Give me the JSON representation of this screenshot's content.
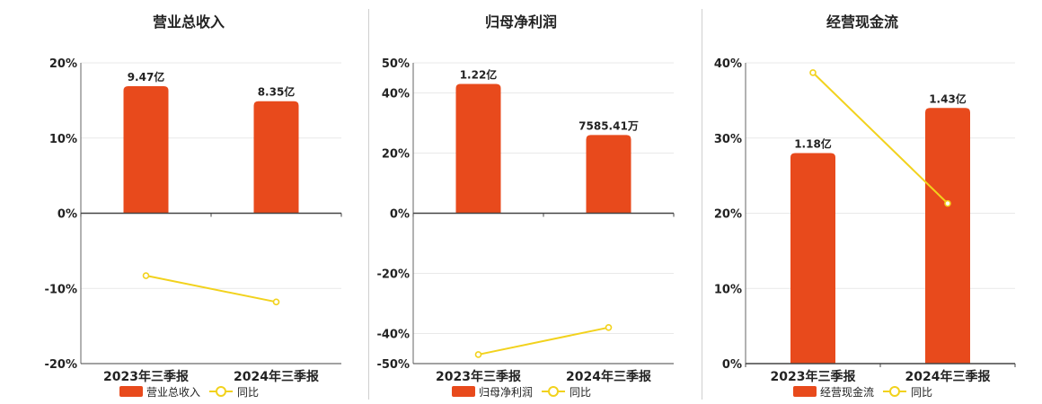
{
  "colors": {
    "bar": "#e84a1c",
    "line": "#f2d21d",
    "axis": "#333333",
    "grid": "#e9e9e9"
  },
  "chart_data": [
    {
      "type": "bar",
      "title": "营业总收入",
      "categories": [
        "2023年三季报",
        "2024年三季报"
      ],
      "bar_series": {
        "name": "营业总收入",
        "values": [
          16.9,
          14.9
        ],
        "labels": [
          "9.47亿",
          "8.35亿"
        ]
      },
      "line_series": {
        "name": "同比",
        "values": [
          -8.3,
          -11.8
        ]
      },
      "ylim": [
        -20,
        20
      ],
      "yticks": [
        20,
        10,
        0,
        -10,
        -20
      ],
      "ytick_labels": [
        "20%",
        "10%",
        "0%",
        "-10%",
        "-20%"
      ],
      "grid": true,
      "legend": "bottom"
    },
    {
      "type": "bar",
      "title": "归母净利润",
      "categories": [
        "2023年三季报",
        "2024年三季报"
      ],
      "bar_series": {
        "name": "归母净利润",
        "values": [
          43,
          26
        ],
        "labels": [
          "1.22亿",
          "7585.41万"
        ]
      },
      "line_series": {
        "name": "同比",
        "values": [
          -47,
          -38
        ]
      },
      "ylim": [
        -50,
        50
      ],
      "yticks": [
        50,
        40,
        20,
        0,
        -20,
        -40,
        -50
      ],
      "ytick_labels": [
        "50%",
        "40%",
        "20%",
        "0%",
        "-20%",
        "-40%",
        "-50%"
      ],
      "grid": true,
      "legend": "bottom"
    },
    {
      "type": "bar",
      "title": "经营现金流",
      "categories": [
        "2023年三季报",
        "2024年三季报"
      ],
      "bar_series": {
        "name": "经营现金流",
        "values": [
          28,
          34
        ],
        "labels": [
          "1.18亿",
          "1.43亿"
        ]
      },
      "line_series": {
        "name": "同比",
        "values": [
          38.7,
          21.3
        ]
      },
      "ylim": [
        0,
        40
      ],
      "yticks": [
        40,
        30,
        20,
        10,
        0
      ],
      "ytick_labels": [
        "40%",
        "30%",
        "20%",
        "10%",
        "0%"
      ],
      "grid": true,
      "legend": "bottom"
    }
  ]
}
